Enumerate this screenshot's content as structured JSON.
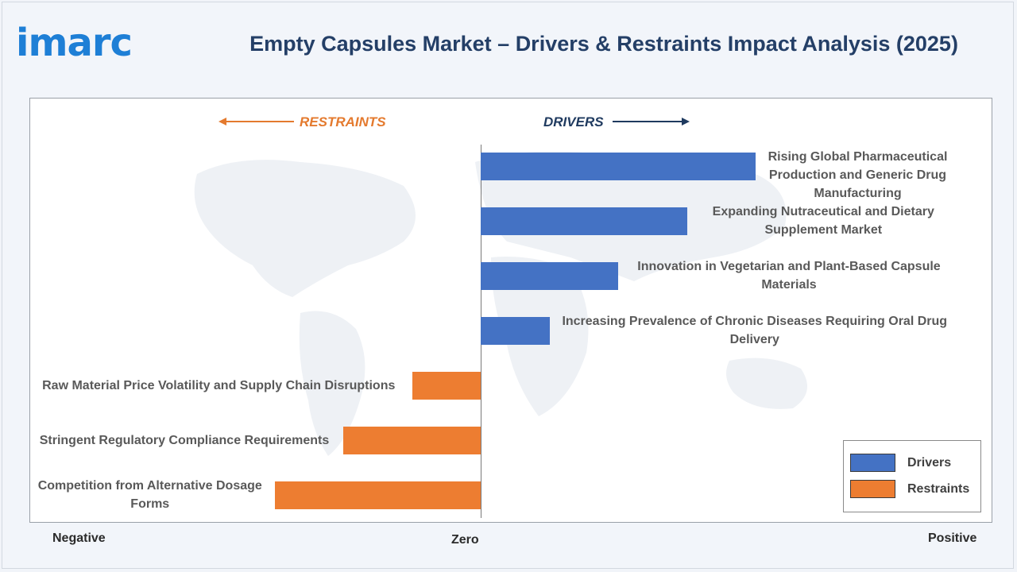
{
  "logo_text": "imarc",
  "title": "Empty Capsules Market – Drivers & Restraints Impact Analysis (2025)",
  "direction_labels": {
    "restraints": "RESTRAINTS",
    "drivers": "DRIVERS"
  },
  "axis_labels": {
    "negative": "Negative",
    "zero": "Zero",
    "positive": "Positive"
  },
  "legend": {
    "drivers": "Drivers",
    "restraints": "Restraints"
  },
  "colors": {
    "drivers": "#4472c4",
    "restraints": "#ed7d31",
    "title": "#243f67",
    "logo": "#1e7fd6"
  },
  "chart_data": {
    "type": "bar",
    "orientation": "horizontal",
    "title": "Empty Capsules Market – Drivers & Restraints Impact Analysis (2025)",
    "xlabel": "",
    "ylabel": "",
    "xlim": [
      -3,
      4
    ],
    "grid": false,
    "legend_position": "bottom-right",
    "series": [
      {
        "name": "Drivers",
        "color": "#4472c4",
        "items": [
          {
            "label": "Rising Global Pharmaceutical Production and Generic Drug Manufacturing",
            "value": 4
          },
          {
            "label": "Expanding Nutraceutical and Dietary Supplement Market",
            "value": 3
          },
          {
            "label": "Innovation in Vegetarian and Plant-Based Capsule Materials",
            "value": 2
          },
          {
            "label": "Increasing Prevalence of Chronic Diseases Requiring Oral Drug Delivery",
            "value": 1
          }
        ]
      },
      {
        "name": "Restraints",
        "color": "#ed7d31",
        "items": [
          {
            "label": "Raw Material Price Volatility and Supply Chain Disruptions",
            "value": -1
          },
          {
            "label": "Stringent Regulatory Compliance Requirements",
            "value": -2
          },
          {
            "label": "Competition from Alternative Dosage Forms",
            "value": -3
          }
        ]
      }
    ]
  }
}
